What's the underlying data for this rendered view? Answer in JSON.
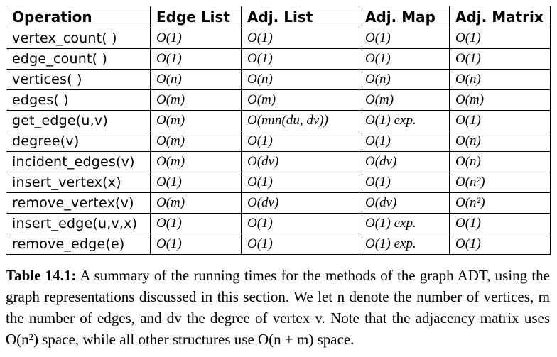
{
  "table": {
    "headers": [
      "Operation",
      "Edge List",
      "Adj. List",
      "Adj. Map",
      "Adj. Matrix"
    ],
    "rows": [
      [
        "vertex_count( )",
        "O(1)",
        "O(1)",
        "O(1)",
        "O(1)"
      ],
      [
        "edge_count( )",
        "O(1)",
        "O(1)",
        "O(1)",
        "O(1)"
      ],
      [
        "vertices( )",
        "O(n)",
        "O(n)",
        "O(n)",
        "O(n)"
      ],
      [
        "edges( )",
        "O(m)",
        "O(m)",
        "O(m)",
        "O(m)"
      ],
      [
        "get_edge(u,v)",
        "O(m)",
        "O(min(du, dv))",
        "O(1) exp.",
        "O(1)"
      ],
      [
        "degree(v)",
        "O(m)",
        "O(1)",
        "O(1)",
        "O(n)"
      ],
      [
        "incident_edges(v)",
        "O(m)",
        "O(dv)",
        "O(dv)",
        "O(n)"
      ],
      [
        "insert_vertex(x)",
        "O(1)",
        "O(1)",
        "O(1)",
        "O(n²)"
      ],
      [
        "remove_vertex(v)",
        "O(m)",
        "O(dv)",
        "O(dv)",
        "O(n²)"
      ],
      [
        "insert_edge(u,v,x)",
        "O(1)",
        "O(1)",
        "O(1) exp.",
        "O(1)"
      ],
      [
        "remove_edge(e)",
        "O(1)",
        "O(1)",
        "O(1) exp.",
        "O(1)"
      ]
    ]
  },
  "caption": {
    "label": "Table 14.1:",
    "text": "A summary of the running times for the methods of the graph ADT, using the graph representations discussed in this section. We let n denote the number of vertices, m the number of edges, and dv the degree of vertex v. Note that the adjacency matrix uses O(n²) space, while all other structures use O(n + m) space."
  }
}
